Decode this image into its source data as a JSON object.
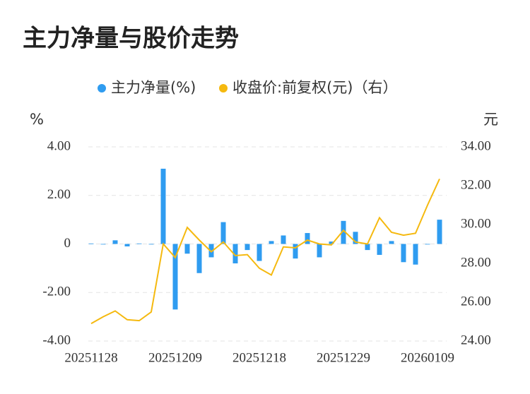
{
  "chart_data": {
    "type": "bar-line",
    "title": "主力净量与股价走势",
    "y_unit": "%",
    "y2_unit": "元",
    "categories": [
      "20251128",
      null,
      null,
      null,
      null,
      null,
      null,
      "20251209",
      null,
      null,
      null,
      null,
      null,
      null,
      "20251218",
      null,
      null,
      null,
      null,
      null,
      null,
      "20251229",
      null,
      null,
      null,
      null,
      null,
      null,
      "20260109",
      null
    ],
    "series": [
      {
        "name": "主力净量(%)",
        "type": "bar",
        "color": "#2f9cf0",
        "values": [
          0.02,
          -0.02,
          0.15,
          -0.1,
          0.02,
          -0.02,
          3.1,
          -2.7,
          -0.4,
          -1.2,
          -0.55,
          0.9,
          -0.8,
          -0.25,
          -0.7,
          0.12,
          0.35,
          -0.6,
          0.45,
          -0.55,
          0.1,
          0.95,
          0.5,
          -0.25,
          -0.45,
          0.12,
          -0.75,
          -0.85,
          -0.02,
          1.0
        ]
      },
      {
        "name": "收盘价:前复权(元)（右）",
        "type": "line",
        "axis": "y2",
        "color": "#f5b90f",
        "values": [
          24.9,
          25.25,
          25.55,
          25.1,
          25.05,
          25.5,
          29.0,
          28.3,
          29.85,
          29.2,
          28.6,
          29.1,
          28.4,
          28.45,
          27.75,
          27.4,
          28.85,
          28.8,
          29.2,
          29.0,
          28.95,
          29.7,
          29.1,
          29.0,
          30.35,
          29.6,
          29.45,
          29.55,
          31.0,
          32.35
        ]
      }
    ],
    "ylim": [
      -4,
      4
    ],
    "yticks": [
      {
        "value": 4,
        "label": "4.00"
      },
      {
        "value": 2,
        "label": "2.00"
      },
      0,
      {
        "value": -2,
        "label": "-2.00"
      },
      {
        "value": -4,
        "label": "-4.00"
      }
    ],
    "y2lim": [
      24,
      34
    ],
    "y2ticks": [
      {
        "value": 34,
        "label": "34.00"
      },
      {
        "value": 32,
        "label": "32.00"
      },
      {
        "value": 30,
        "label": "30.00"
      },
      {
        "value": 28,
        "label": "28.00"
      },
      {
        "value": 26,
        "label": "26.00"
      },
      {
        "value": 24,
        "label": "24.00"
      }
    ],
    "grid": true
  }
}
